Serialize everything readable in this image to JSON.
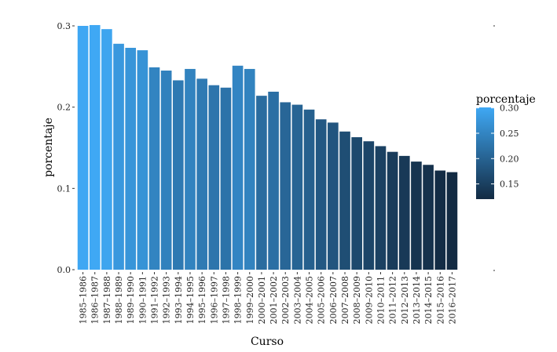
{
  "chart_data": {
    "type": "bar",
    "xlabel": "Curso",
    "ylabel": "porcentaje",
    "ylim": [
      0,
      0.3
    ],
    "yticks": [
      {
        "value": 0.0,
        "label": "0.0"
      },
      {
        "value": 0.1,
        "label": "0.1"
      },
      {
        "value": 0.2,
        "label": "0.2"
      },
      {
        "value": 0.3,
        "label": "0.3"
      }
    ],
    "grid": false,
    "categories": [
      "1985–1986",
      "1986–1987",
      "1987–1988",
      "1988–1989",
      "1989–1990",
      "1990–1991",
      "1991–1992",
      "1992–1993",
      "1993–1994",
      "1994–1995",
      "1995–1996",
      "1996–1997",
      "1997–1998",
      "1998–1999",
      "1999–2000",
      "2000–2001",
      "2001–2002",
      "2002–2003",
      "2003–2004",
      "2004–2005",
      "2005–2006",
      "2006–2007",
      "2007–2008",
      "2008–2009",
      "2009–2010",
      "2010–2011",
      "2011–2012",
      "2012–2013",
      "2013–2014",
      "2014–2015",
      "2015–2016",
      "2016–2017"
    ],
    "values": [
      0.3,
      0.301,
      0.296,
      0.278,
      0.273,
      0.27,
      0.249,
      0.245,
      0.233,
      0.247,
      0.235,
      0.227,
      0.224,
      0.251,
      0.247,
      0.214,
      0.219,
      0.206,
      0.203,
      0.197,
      0.185,
      0.181,
      0.17,
      0.163,
      0.158,
      0.152,
      0.145,
      0.14,
      0.133,
      0.129,
      0.122,
      0.12
    ],
    "legend": {
      "title": "porcentaje",
      "placement": "right",
      "type": "colorbar",
      "low_color": "#132b43",
      "high_color": "#3fa8f4",
      "min": 0.12,
      "max": 0.301,
      "ticks": [
        {
          "value": 0.15,
          "label": "0.15"
        },
        {
          "value": 0.2,
          "label": "0.20"
        },
        {
          "value": 0.25,
          "label": "0.25"
        },
        {
          "value": 0.3,
          "label": "0.30"
        }
      ]
    }
  }
}
